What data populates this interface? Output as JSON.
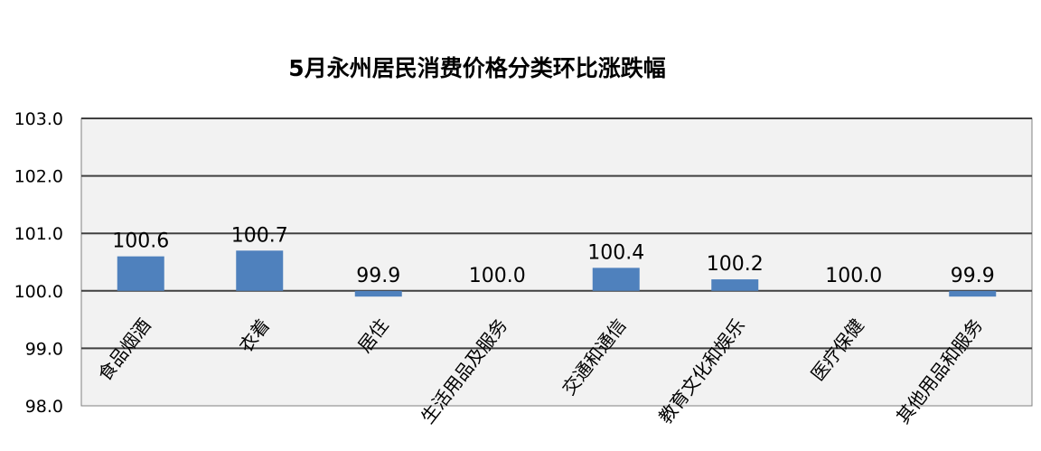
{
  "chart_data": {
    "type": "bar",
    "title": "5月永州居民消费价格分类环比涨跌幅",
    "categories": [
      "食品烟酒",
      "衣着",
      "居住",
      "生活用品及服务",
      "交通和通信",
      "教育文化和娱乐",
      "医疗保健",
      "其他用品和服务"
    ],
    "values": [
      100.6,
      100.7,
      99.9,
      100.0,
      100.4,
      100.2,
      100.0,
      99.9
    ],
    "data_labels": [
      "100.6",
      "100.7",
      "99.9",
      "100.0",
      "100.4",
      "100.2",
      "100.0",
      "99.9"
    ],
    "baseline": 100.0,
    "ylim": [
      98.0,
      103.0
    ],
    "yticks": [
      "98.0",
      "99.0",
      "100.0",
      "101.0",
      "102.0",
      "103.0"
    ],
    "xlabel": "",
    "ylabel": "",
    "grid": true,
    "legend": "none",
    "colors": {
      "bar": "#4f81bd",
      "plot_bg": "#f2f2f2",
      "grid": "#404040"
    }
  }
}
